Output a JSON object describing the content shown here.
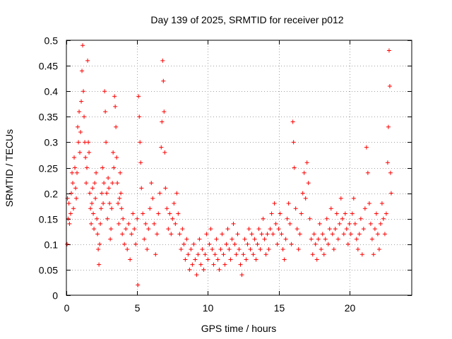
{
  "chart_data": {
    "type": "scatter",
    "title": "Day 139 of 2025, SRMTID for receiver p012",
    "xlabel": "GPS time / hours",
    "ylabel": "SRMTID / TECUs",
    "xlim": [
      0,
      24.4
    ],
    "ylim": [
      0,
      0.5
    ],
    "x_ticks": [
      0,
      5,
      10,
      15,
      20
    ],
    "x_tick_labels": [
      "0",
      "5",
      "10",
      "15",
      "20"
    ],
    "y_ticks": [
      0,
      0.05,
      0.1,
      0.15,
      0.2,
      0.25,
      0.3,
      0.35,
      0.4,
      0.45,
      0.5
    ],
    "y_tick_labels": [
      "0",
      "0.05",
      "0.1",
      "0.15",
      "0.2",
      "0.25",
      "0.3",
      "0.35",
      "0.4",
      "0.45",
      "0.5"
    ],
    "grid": true,
    "marker": "plus",
    "series": [
      {
        "name": "SRMTID",
        "color": "#ff0000",
        "points": [
          [
            0.05,
            0.1
          ],
          [
            0.08,
            0.19
          ],
          [
            0.12,
            0.15
          ],
          [
            0.18,
            0.18
          ],
          [
            0.22,
            0.14
          ],
          [
            0.3,
            0.16
          ],
          [
            0.35,
            0.2
          ],
          [
            0.4,
            0.24
          ],
          [
            0.45,
            0.22
          ],
          [
            0.5,
            0.17
          ],
          [
            0.55,
            0.27
          ],
          [
            0.6,
            0.25
          ],
          [
            0.65,
            0.21
          ],
          [
            0.7,
            0.19
          ],
          [
            0.75,
            0.24
          ],
          [
            0.8,
            0.33
          ],
          [
            0.85,
            0.3
          ],
          [
            0.9,
            0.36
          ],
          [
            0.95,
            0.28
          ],
          [
            1.0,
            0.32
          ],
          [
            1.05,
            0.38
          ],
          [
            1.1,
            0.44
          ],
          [
            1.15,
            0.49
          ],
          [
            1.2,
            0.4
          ],
          [
            1.25,
            0.35
          ],
          [
            1.3,
            0.3
          ],
          [
            1.35,
            0.27
          ],
          [
            1.4,
            0.22
          ],
          [
            1.45,
            0.25
          ],
          [
            1.5,
            0.46
          ],
          [
            1.55,
            0.3
          ],
          [
            1.6,
            0.28
          ],
          [
            1.65,
            0.2
          ],
          [
            1.7,
            0.17
          ],
          [
            1.75,
            0.14
          ],
          [
            1.8,
            0.18
          ],
          [
            1.85,
            0.21
          ],
          [
            1.9,
            0.16
          ],
          [
            1.95,
            0.13
          ],
          [
            2.0,
            0.22
          ],
          [
            2.05,
            0.19
          ],
          [
            2.1,
            0.24
          ],
          [
            2.15,
            0.15
          ],
          [
            2.2,
            0.12
          ],
          [
            2.25,
            0.09
          ],
          [
            2.3,
            0.06
          ],
          [
            2.35,
            0.1
          ],
          [
            2.4,
            0.14
          ],
          [
            2.45,
            0.17
          ],
          [
            2.5,
            0.2
          ],
          [
            2.55,
            0.25
          ],
          [
            2.6,
            0.18
          ],
          [
            2.65,
            0.22
          ],
          [
            2.7,
            0.4
          ],
          [
            2.75,
            0.36
          ],
          [
            2.8,
            0.3
          ],
          [
            2.85,
            0.2
          ],
          [
            2.9,
            0.15
          ],
          [
            2.95,
            0.23
          ],
          [
            3.0,
            0.21
          ],
          [
            3.05,
            0.18
          ],
          [
            3.1,
            0.11
          ],
          [
            3.15,
            0.13
          ],
          [
            3.2,
            0.17
          ],
          [
            3.25,
            0.22
          ],
          [
            3.3,
            0.28
          ],
          [
            3.35,
            0.25
          ],
          [
            3.4,
            0.39
          ],
          [
            3.45,
            0.37
          ],
          [
            3.5,
            0.33
          ],
          [
            3.55,
            0.27
          ],
          [
            3.6,
            0.22
          ],
          [
            3.65,
            0.18
          ],
          [
            3.7,
            0.14
          ],
          [
            3.75,
            0.19
          ],
          [
            3.8,
            0.24
          ],
          [
            3.85,
            0.2
          ],
          [
            3.9,
            0.17
          ],
          [
            3.95,
            0.12
          ],
          [
            4.0,
            0.15
          ],
          [
            4.1,
            0.1
          ],
          [
            4.2,
            0.13
          ],
          [
            4.3,
            0.09
          ],
          [
            4.4,
            0.14
          ],
          [
            4.5,
            0.07
          ],
          [
            4.6,
            0.12
          ],
          [
            4.7,
            0.16
          ],
          [
            4.8,
            0.13
          ],
          [
            4.9,
            0.1
          ],
          [
            5.0,
            0.15
          ],
          [
            5.05,
            0.02
          ],
          [
            5.1,
            0.39
          ],
          [
            5.15,
            0.35
          ],
          [
            5.2,
            0.3
          ],
          [
            5.25,
            0.26
          ],
          [
            5.3,
            0.21
          ],
          [
            5.4,
            0.16
          ],
          [
            5.5,
            0.11
          ],
          [
            5.6,
            0.14
          ],
          [
            5.7,
            0.09
          ],
          [
            5.8,
            0.13
          ],
          [
            5.9,
            0.17
          ],
          [
            6.0,
            0.22
          ],
          [
            6.1,
            0.19
          ],
          [
            6.2,
            0.14
          ],
          [
            6.3,
            0.08
          ],
          [
            6.4,
            0.12
          ],
          [
            6.5,
            0.16
          ],
          [
            6.6,
            0.2
          ],
          [
            6.7,
            0.29
          ],
          [
            6.75,
            0.34
          ],
          [
            6.8,
            0.46
          ],
          [
            6.85,
            0.42
          ],
          [
            6.9,
            0.36
          ],
          [
            6.95,
            0.28
          ],
          [
            7.0,
            0.21
          ],
          [
            7.1,
            0.17
          ],
          [
            7.2,
            0.13
          ],
          [
            7.3,
            0.16
          ],
          [
            7.4,
            0.12
          ],
          [
            7.5,
            0.15
          ],
          [
            7.6,
            0.18
          ],
          [
            7.7,
            0.14
          ],
          [
            7.8,
            0.2
          ],
          [
            7.9,
            0.16
          ],
          [
            8.0,
            0.12
          ],
          [
            8.1,
            0.09
          ],
          [
            8.2,
            0.13
          ],
          [
            8.3,
            0.1
          ],
          [
            8.4,
            0.07
          ],
          [
            8.5,
            0.11
          ],
          [
            8.6,
            0.08
          ],
          [
            8.7,
            0.05
          ],
          [
            8.8,
            0.09
          ],
          [
            8.9,
            0.06
          ],
          [
            9.0,
            0.1
          ],
          [
            9.1,
            0.07
          ],
          [
            9.2,
            0.04
          ],
          [
            9.3,
            0.08
          ],
          [
            9.4,
            0.11
          ],
          [
            9.5,
            0.06
          ],
          [
            9.6,
            0.09
          ],
          [
            9.7,
            0.05
          ],
          [
            9.8,
            0.08
          ],
          [
            9.9,
            0.12
          ],
          [
            10.0,
            0.07
          ],
          [
            10.1,
            0.1
          ],
          [
            10.2,
            0.13
          ],
          [
            10.3,
            0.09
          ],
          [
            10.4,
            0.06
          ],
          [
            10.5,
            0.08
          ],
          [
            10.6,
            0.11
          ],
          [
            10.7,
            0.07
          ],
          [
            10.8,
            0.05
          ],
          [
            10.9,
            0.09
          ],
          [
            11.0,
            0.12
          ],
          [
            11.1,
            0.08
          ],
          [
            11.2,
            0.06
          ],
          [
            11.3,
            0.1
          ],
          [
            11.4,
            0.13
          ],
          [
            11.5,
            0.09
          ],
          [
            11.6,
            0.07
          ],
          [
            11.7,
            0.11
          ],
          [
            11.8,
            0.14
          ],
          [
            11.9,
            0.1
          ],
          [
            12.0,
            0.08
          ],
          [
            12.1,
            0.12
          ],
          [
            12.2,
            0.09
          ],
          [
            12.3,
            0.06
          ],
          [
            12.4,
            0.04
          ],
          [
            12.5,
            0.08
          ],
          [
            12.6,
            0.11
          ],
          [
            12.7,
            0.07
          ],
          [
            12.8,
            0.1
          ],
          [
            12.9,
            0.13
          ],
          [
            13.0,
            0.09
          ],
          [
            13.1,
            0.12
          ],
          [
            13.2,
            0.08
          ],
          [
            13.3,
            0.11
          ],
          [
            13.4,
            0.07
          ],
          [
            13.5,
            0.1
          ],
          [
            13.6,
            0.13
          ],
          [
            13.7,
            0.09
          ],
          [
            13.8,
            0.12
          ],
          [
            13.9,
            0.15
          ],
          [
            14.0,
            0.11
          ],
          [
            14.1,
            0.08
          ],
          [
            14.2,
            0.12
          ],
          [
            14.3,
            0.09
          ],
          [
            14.4,
            0.13
          ],
          [
            14.5,
            0.16
          ],
          [
            14.6,
            0.12
          ],
          [
            14.7,
            0.18
          ],
          [
            14.8,
            0.14
          ],
          [
            14.9,
            0.1
          ],
          [
            15.0,
            0.13
          ],
          [
            15.1,
            0.16
          ],
          [
            15.2,
            0.12
          ],
          [
            15.3,
            0.09
          ],
          [
            15.4,
            0.07
          ],
          [
            15.5,
            0.11
          ],
          [
            15.6,
            0.15
          ],
          [
            15.7,
            0.18
          ],
          [
            15.8,
            0.14
          ],
          [
            15.9,
            0.1
          ],
          [
            16.0,
            0.34
          ],
          [
            16.05,
            0.3
          ],
          [
            16.1,
            0.25
          ],
          [
            16.2,
            0.17
          ],
          [
            16.3,
            0.13
          ],
          [
            16.4,
            0.09
          ],
          [
            16.5,
            0.12
          ],
          [
            16.6,
            0.16
          ],
          [
            16.7,
            0.2
          ],
          [
            16.8,
            0.24
          ],
          [
            16.9,
            0.19
          ],
          [
            17.0,
            0.26
          ],
          [
            17.1,
            0.22
          ],
          [
            17.2,
            0.15
          ],
          [
            17.3,
            0.11
          ],
          [
            17.4,
            0.08
          ],
          [
            17.5,
            0.12
          ],
          [
            17.6,
            0.1
          ],
          [
            17.7,
            0.07
          ],
          [
            17.8,
            0.11
          ],
          [
            17.9,
            0.14
          ],
          [
            18.0,
            0.09
          ],
          [
            18.1,
            0.12
          ],
          [
            18.2,
            0.08
          ],
          [
            18.3,
            0.11
          ],
          [
            18.4,
            0.15
          ],
          [
            18.5,
            0.1
          ],
          [
            18.6,
            0.13
          ],
          [
            18.7,
            0.17
          ],
          [
            18.8,
            0.12
          ],
          [
            18.9,
            0.09
          ],
          [
            19.0,
            0.13
          ],
          [
            19.1,
            0.16
          ],
          [
            19.2,
            0.11
          ],
          [
            19.3,
            0.14
          ],
          [
            19.4,
            0.19
          ],
          [
            19.5,
            0.15
          ],
          [
            19.6,
            0.12
          ],
          [
            19.7,
            0.16
          ],
          [
            19.8,
            0.13
          ],
          [
            19.9,
            0.1
          ],
          [
            20.0,
            0.14
          ],
          [
            20.1,
            0.12
          ],
          [
            20.2,
            0.16
          ],
          [
            20.3,
            0.19
          ],
          [
            20.4,
            0.14
          ],
          [
            20.5,
            0.11
          ],
          [
            20.6,
            0.09
          ],
          [
            20.7,
            0.12
          ],
          [
            20.8,
            0.15
          ],
          [
            20.9,
            0.08
          ],
          [
            21.0,
            0.13
          ],
          [
            21.1,
            0.17
          ],
          [
            21.2,
            0.29
          ],
          [
            21.3,
            0.24
          ],
          [
            21.4,
            0.18
          ],
          [
            21.5,
            0.14
          ],
          [
            21.6,
            0.11
          ],
          [
            21.7,
            0.08
          ],
          [
            21.8,
            0.13
          ],
          [
            21.9,
            0.16
          ],
          [
            22.0,
            0.12
          ],
          [
            22.1,
            0.09
          ],
          [
            22.2,
            0.14
          ],
          [
            22.3,
            0.18
          ],
          [
            22.4,
            0.15
          ],
          [
            22.5,
            0.12
          ],
          [
            22.6,
            0.16
          ],
          [
            22.7,
            0.26
          ],
          [
            22.75,
            0.33
          ],
          [
            22.8,
            0.48
          ],
          [
            22.85,
            0.41
          ],
          [
            22.9,
            0.24
          ],
          [
            22.95,
            0.2
          ]
        ]
      }
    ]
  }
}
